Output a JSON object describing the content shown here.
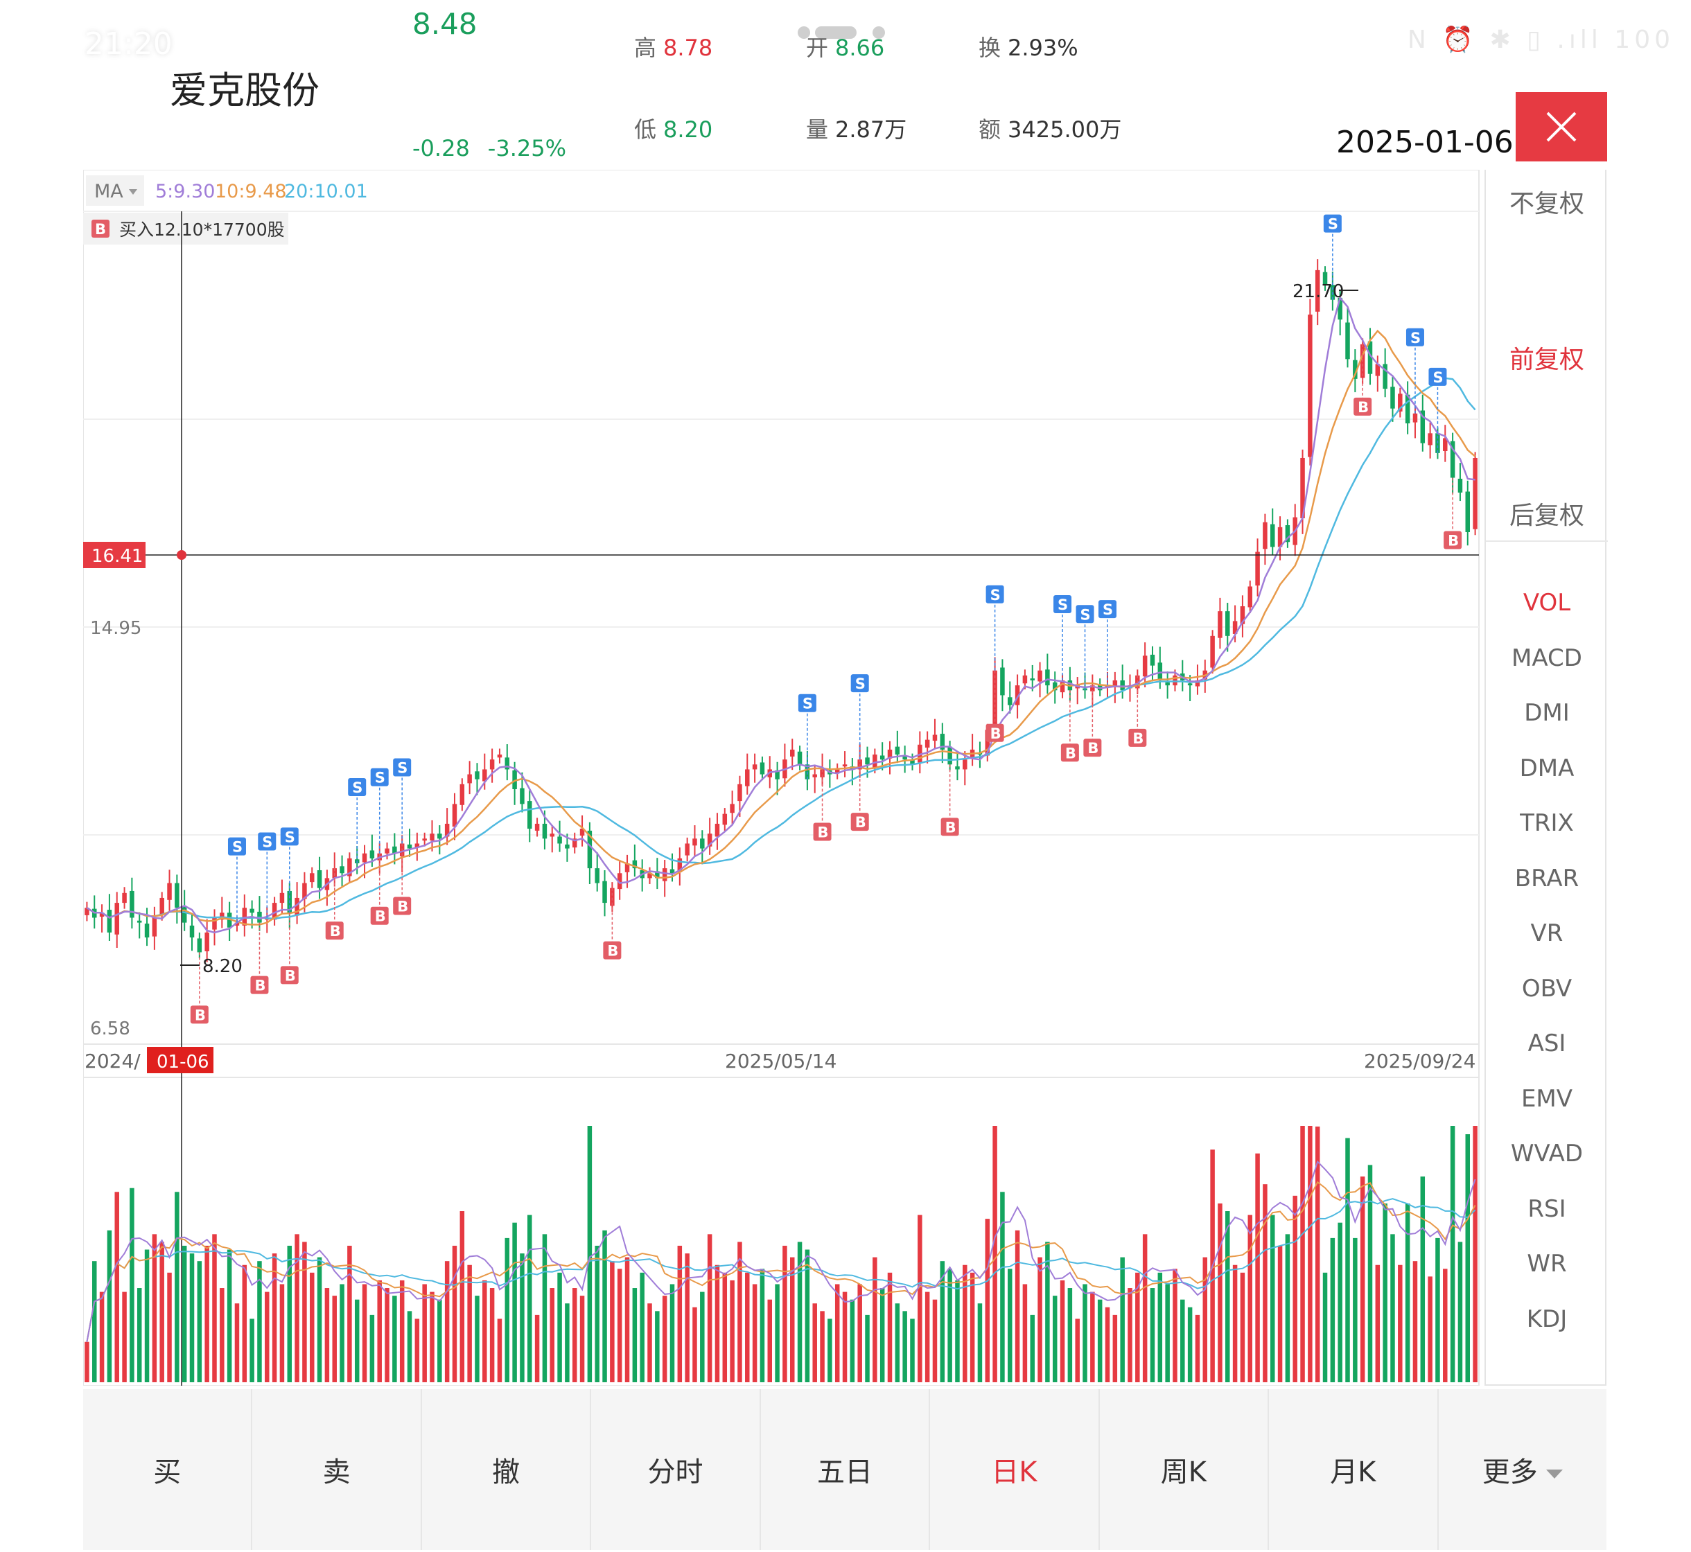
{
  "status_bar": {
    "time": "21:20",
    "icons": "N ⏰ ✱ ▯ .ıll 100"
  },
  "header": {
    "stock_name": "爱克股份",
    "price": "8.48",
    "change": "-0.28",
    "change_pct": "-3.25%",
    "high": {
      "label": "高",
      "value": "8.78"
    },
    "open": {
      "label": "开",
      "value": "8.66"
    },
    "turnover": {
      "label": "换",
      "value": "2.93%"
    },
    "low": {
      "label": "低",
      "value": "8.20"
    },
    "volume": {
      "label": "量",
      "value": "2.87万"
    },
    "amount": {
      "label": "额",
      "value": "3425.00万"
    },
    "date": "2025-01-06"
  },
  "side_panel": {
    "adjust": [
      "不复权",
      "前复权",
      "后复权"
    ],
    "adjust_active": 1,
    "indicators": [
      "VOL",
      "MACD",
      "DMI",
      "DMA",
      "TRIX",
      "BRAR",
      "VR",
      "OBV",
      "ASI",
      "EMV",
      "WVAD",
      "RSI",
      "WR",
      "KDJ"
    ],
    "indicator_active": 0
  },
  "bottom_bar": {
    "buttons": [
      "买",
      "卖",
      "撤",
      "分时",
      "五日",
      "日K",
      "周K",
      "月K",
      "更多"
    ],
    "active": 5
  },
  "colors": {
    "up": "#e63a42",
    "down": "#14a55f",
    "ma5": "#a07dd8",
    "ma10": "#e89a4a",
    "ma20": "#4fb9e0",
    "accent": "#e0333c",
    "buy_marker": "#e35d66",
    "sell_marker": "#3a86e8"
  },
  "chart_data": {
    "type": "candlestick",
    "ma_legend": {
      "label": "MA",
      "ma5": "5:9.30",
      "ma10": "10:9.48",
      "ma20": "20:10.01"
    },
    "trade_note": {
      "tag": "B",
      "text": "买入12.10*17700股"
    },
    "y_ticks": [
      "14.95",
      "6.58"
    ],
    "crosshair_price": "16.41",
    "crosshair_date": "01-06",
    "x_labels": [
      "2024/",
      "2025/05/14",
      "2025/09/24"
    ],
    "min_label": "8.20",
    "max_label": "21.70",
    "ylim": [
      6.58,
      23.4
    ],
    "close": [
      9.1,
      8.9,
      9.0,
      8.6,
      9.2,
      9.4,
      8.9,
      8.8,
      8.5,
      8.9,
      9.3,
      9.6,
      9.1,
      8.8,
      8.5,
      8.2,
      8.6,
      8.9,
      9.0,
      8.7,
      8.8,
      9.1,
      9.0,
      8.8,
      8.9,
      9.2,
      9.4,
      9.0,
      9.3,
      9.6,
      9.8,
      9.5,
      9.7,
      9.9,
      9.8,
      10.1,
      10.0,
      10.2,
      10.1,
      10.2,
      10.3,
      10.2,
      10.4,
      10.3,
      10.4,
      10.5,
      10.6,
      10.5,
      10.8,
      11.2,
      11.6,
      11.8,
      11.7,
      11.9,
      12.1,
      12.2,
      11.9,
      11.5,
      11.2,
      10.7,
      10.8,
      10.5,
      10.6,
      10.4,
      10.3,
      10.5,
      10.7,
      9.9,
      9.6,
      9.2,
      9.5,
      9.8,
      10.0,
      9.9,
      9.7,
      9.8,
      9.7,
      9.9,
      9.8,
      10.1,
      10.4,
      10.5,
      10.3,
      10.6,
      10.8,
      11.0,
      11.2,
      11.6,
      11.9,
      12.0,
      11.8,
      11.9,
      11.7,
      12.1,
      12.3,
      12.0,
      11.7,
      11.8,
      11.9,
      11.8,
      11.9,
      12.0,
      11.9,
      12.1,
      12.0,
      12.2,
      12.1,
      12.3,
      12.2,
      12.1,
      12.0,
      12.4,
      12.5,
      12.6,
      12.3,
      12.0,
      11.9,
      12.1,
      12.3,
      12.2,
      12.7,
      13.9,
      13.4,
      13.2,
      13.6,
      13.8,
      13.7,
      13.9,
      13.6,
      13.5,
      13.7,
      13.5,
      13.6,
      13.5,
      13.6,
      13.5,
      13.6,
      13.7,
      13.5,
      13.6,
      13.8,
      14.2,
      14.0,
      13.7,
      13.6,
      13.8,
      13.7,
      13.6,
      13.7,
      13.9,
      14.6,
      15.1,
      14.6,
      14.9,
      15.2,
      15.6,
      16.3,
      16.9,
      16.4,
      16.8,
      16.5,
      17.0,
      18.2,
      21.1,
      22.0,
      21.7,
      21.4,
      21.0,
      20.2,
      19.8,
      20.5,
      19.9,
      20.1,
      19.6,
      19.2,
      19.5,
      18.9,
      19.1,
      18.5,
      18.7,
      18.3,
      18.6,
      17.8,
      17.5,
      16.7,
      18.2
    ]
  }
}
